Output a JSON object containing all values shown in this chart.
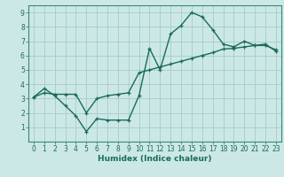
{
  "xlabel": "Humidex (Indice chaleur)",
  "bg_color": "#cce8e6",
  "grid_color": "#aacfcd",
  "line_color": "#1a6b5a",
  "spine_color": "#3a8a78",
  "xlim": [
    -0.5,
    23.5
  ],
  "ylim": [
    0,
    9.5
  ],
  "xticks": [
    0,
    1,
    2,
    3,
    4,
    5,
    6,
    7,
    8,
    9,
    10,
    11,
    12,
    13,
    14,
    15,
    16,
    17,
    18,
    19,
    20,
    21,
    22,
    23
  ],
  "yticks": [
    1,
    2,
    3,
    4,
    5,
    6,
    7,
    8,
    9
  ],
  "curve1_x": [
    0,
    1,
    2,
    3,
    4,
    5,
    6,
    7,
    8,
    9,
    10,
    11,
    12,
    13,
    14,
    15,
    16,
    17,
    18,
    19,
    20,
    21,
    22,
    23
  ],
  "curve1_y": [
    3.1,
    3.7,
    3.2,
    2.5,
    1.8,
    0.7,
    1.6,
    1.5,
    1.5,
    1.5,
    3.2,
    6.5,
    5.0,
    7.5,
    8.1,
    9.0,
    8.7,
    7.8,
    6.8,
    6.6,
    7.0,
    6.7,
    6.7,
    6.4
  ],
  "curve2_x": [
    0,
    1,
    2,
    3,
    4,
    5,
    6,
    7,
    8,
    9,
    10,
    11,
    12,
    13,
    14,
    15,
    16,
    17,
    18,
    19,
    20,
    21,
    22,
    23
  ],
  "curve2_y": [
    3.1,
    3.4,
    3.3,
    3.3,
    3.3,
    2.0,
    3.0,
    3.2,
    3.3,
    3.4,
    4.8,
    5.0,
    5.2,
    5.4,
    5.6,
    5.8,
    6.0,
    6.2,
    6.45,
    6.5,
    6.6,
    6.7,
    6.8,
    6.3
  ],
  "xlabel_fontsize": 6.5,
  "tick_fontsize": 5.5,
  "linewidth": 1.0,
  "markersize": 3.0
}
